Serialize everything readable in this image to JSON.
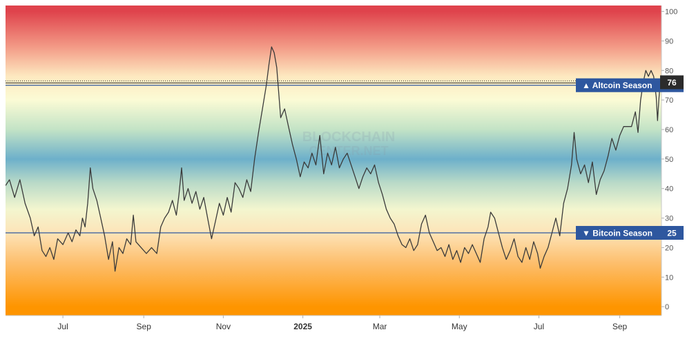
{
  "watermark": [
    "BLOCKCHAIN",
    "CENTER.NET"
  ],
  "chart_data": {
    "type": "line",
    "title": "",
    "xlabel": "",
    "ylabel": "",
    "ylim": [
      -3,
      102
    ],
    "y_ticks": [
      0,
      10,
      20,
      30,
      40,
      50,
      60,
      70,
      80,
      90,
      100
    ],
    "x_tick_labels": [
      {
        "label": "Jul",
        "date": "2024-07-01"
      },
      {
        "label": "Sep",
        "date": "2024-09-01"
      },
      {
        "label": "Nov",
        "date": "2024-11-01"
      },
      {
        "label": "2025",
        "date": "2025-01-01",
        "bold": true
      },
      {
        "label": "Mar",
        "date": "2025-03-01"
      },
      {
        "label": "May",
        "date": "2025-05-01"
      },
      {
        "label": "Jul",
        "date": "2025-07-01"
      },
      {
        "label": "Sep",
        "date": "2025-09-01"
      }
    ],
    "x_range": [
      "2024-05-18",
      "2025-10-03"
    ],
    "background_gradient": [
      {
        "value": 100,
        "color": "#df434c"
      },
      {
        "value": 88,
        "color": "#f39a86"
      },
      {
        "value": 78,
        "color": "#fde9c0"
      },
      {
        "value": 70,
        "color": "#fbfbd5"
      },
      {
        "value": 60,
        "color": "#c3e3c6"
      },
      {
        "value": 50,
        "color": "#6db0ca"
      },
      {
        "value": 42,
        "color": "#b9dac8"
      },
      {
        "value": 33,
        "color": "#f3f6cf"
      },
      {
        "value": 25,
        "color": "#fde4b8"
      },
      {
        "value": 15,
        "color": "#fdbf6e"
      },
      {
        "value": 0,
        "color": "#fe9500"
      }
    ],
    "reference_lines": [
      {
        "name": "Altcoin Season",
        "value": 75,
        "symbol": "▲",
        "color": "#2e579f"
      },
      {
        "name": "Bitcoin Season",
        "value": 25,
        "symbol": "▼",
        "color": "#2e579f"
      }
    ],
    "current_value": {
      "value": 76,
      "color": "#2b2b2b"
    },
    "series": [
      {
        "color": "#3a3a3a",
        "points": [
          [
            "2024-05-18",
            41
          ],
          [
            "2024-05-21",
            43
          ],
          [
            "2024-05-25",
            37
          ],
          [
            "2024-05-29",
            43
          ],
          [
            "2024-06-02",
            35
          ],
          [
            "2024-06-06",
            30
          ],
          [
            "2024-06-09",
            24
          ],
          [
            "2024-06-12",
            27
          ],
          [
            "2024-06-15",
            19
          ],
          [
            "2024-06-18",
            17
          ],
          [
            "2024-06-21",
            20
          ],
          [
            "2024-06-24",
            16
          ],
          [
            "2024-06-27",
            23
          ],
          [
            "2024-07-01",
            21
          ],
          [
            "2024-07-05",
            25
          ],
          [
            "2024-07-08",
            22
          ],
          [
            "2024-07-11",
            26
          ],
          [
            "2024-07-14",
            24
          ],
          [
            "2024-07-16",
            30
          ],
          [
            "2024-07-18",
            27
          ],
          [
            "2024-07-20",
            35
          ],
          [
            "2024-07-22",
            47
          ],
          [
            "2024-07-24",
            40
          ],
          [
            "2024-07-27",
            36
          ],
          [
            "2024-07-30",
            30
          ],
          [
            "2024-08-02",
            24
          ],
          [
            "2024-08-05",
            16
          ],
          [
            "2024-08-08",
            22
          ],
          [
            "2024-08-10",
            12
          ],
          [
            "2024-08-13",
            20
          ],
          [
            "2024-08-16",
            18
          ],
          [
            "2024-08-19",
            23
          ],
          [
            "2024-08-22",
            21
          ],
          [
            "2024-08-24",
            31
          ],
          [
            "2024-08-26",
            22
          ],
          [
            "2024-08-30",
            20
          ],
          [
            "2024-09-03",
            18
          ],
          [
            "2024-09-07",
            20
          ],
          [
            "2024-09-11",
            18
          ],
          [
            "2024-09-14",
            27
          ],
          [
            "2024-09-17",
            30
          ],
          [
            "2024-09-20",
            32
          ],
          [
            "2024-09-23",
            36
          ],
          [
            "2024-09-26",
            31
          ],
          [
            "2024-09-28",
            38
          ],
          [
            "2024-09-30",
            47
          ],
          [
            "2024-10-02",
            36
          ],
          [
            "2024-10-05",
            40
          ],
          [
            "2024-10-08",
            35
          ],
          [
            "2024-10-11",
            39
          ],
          [
            "2024-10-14",
            33
          ],
          [
            "2024-10-17",
            37
          ],
          [
            "2024-10-20",
            30
          ],
          [
            "2024-10-23",
            23
          ],
          [
            "2024-10-26",
            29
          ],
          [
            "2024-10-29",
            35
          ],
          [
            "2024-11-01",
            31
          ],
          [
            "2024-11-04",
            37
          ],
          [
            "2024-11-07",
            32
          ],
          [
            "2024-11-10",
            42
          ],
          [
            "2024-11-13",
            40
          ],
          [
            "2024-11-16",
            37
          ],
          [
            "2024-11-19",
            43
          ],
          [
            "2024-11-22",
            39
          ],
          [
            "2024-11-25",
            50
          ],
          [
            "2024-11-28",
            59
          ],
          [
            "2024-12-01",
            67
          ],
          [
            "2024-12-04",
            75
          ],
          [
            "2024-12-06",
            82
          ],
          [
            "2024-12-08",
            88
          ],
          [
            "2024-12-10",
            86
          ],
          [
            "2024-12-12",
            81
          ],
          [
            "2024-12-15",
            64
          ],
          [
            "2024-12-18",
            67
          ],
          [
            "2024-12-21",
            61
          ],
          [
            "2024-12-24",
            55
          ],
          [
            "2024-12-27",
            50
          ],
          [
            "2024-12-30",
            44
          ],
          [
            "2025-01-02",
            49
          ],
          [
            "2025-01-05",
            47
          ],
          [
            "2025-01-08",
            52
          ],
          [
            "2025-01-11",
            48
          ],
          [
            "2025-01-14",
            58
          ],
          [
            "2025-01-17",
            45
          ],
          [
            "2025-01-20",
            52
          ],
          [
            "2025-01-23",
            48
          ],
          [
            "2025-01-26",
            54
          ],
          [
            "2025-01-29",
            47
          ],
          [
            "2025-02-01",
            50
          ],
          [
            "2025-02-04",
            52
          ],
          [
            "2025-02-07",
            48
          ],
          [
            "2025-02-10",
            44
          ],
          [
            "2025-02-13",
            40
          ],
          [
            "2025-02-16",
            44
          ],
          [
            "2025-02-19",
            47
          ],
          [
            "2025-02-22",
            45
          ],
          [
            "2025-02-25",
            48
          ],
          [
            "2025-02-28",
            42
          ],
          [
            "2025-03-03",
            38
          ],
          [
            "2025-03-06",
            33
          ],
          [
            "2025-03-09",
            30
          ],
          [
            "2025-03-12",
            28
          ],
          [
            "2025-03-15",
            24
          ],
          [
            "2025-03-18",
            21
          ],
          [
            "2025-03-21",
            20
          ],
          [
            "2025-03-24",
            23
          ],
          [
            "2025-03-27",
            19
          ],
          [
            "2025-03-30",
            21
          ],
          [
            "2025-04-02",
            28
          ],
          [
            "2025-04-05",
            31
          ],
          [
            "2025-04-08",
            25
          ],
          [
            "2025-04-11",
            22
          ],
          [
            "2025-04-14",
            19
          ],
          [
            "2025-04-17",
            20
          ],
          [
            "2025-04-20",
            17
          ],
          [
            "2025-04-23",
            21
          ],
          [
            "2025-04-26",
            16
          ],
          [
            "2025-04-29",
            19
          ],
          [
            "2025-05-02",
            15
          ],
          [
            "2025-05-05",
            20
          ],
          [
            "2025-05-08",
            18
          ],
          [
            "2025-05-11",
            21
          ],
          [
            "2025-05-14",
            18
          ],
          [
            "2025-05-17",
            15
          ],
          [
            "2025-05-20",
            23
          ],
          [
            "2025-05-23",
            27
          ],
          [
            "2025-05-25",
            32
          ],
          [
            "2025-05-28",
            30
          ],
          [
            "2025-05-31",
            25
          ],
          [
            "2025-06-03",
            20
          ],
          [
            "2025-06-06",
            16
          ],
          [
            "2025-06-09",
            19
          ],
          [
            "2025-06-12",
            23
          ],
          [
            "2025-06-15",
            17
          ],
          [
            "2025-06-18",
            15
          ],
          [
            "2025-06-21",
            20
          ],
          [
            "2025-06-24",
            16
          ],
          [
            "2025-06-27",
            22
          ],
          [
            "2025-06-30",
            18
          ],
          [
            "2025-07-02",
            13
          ],
          [
            "2025-07-05",
            17
          ],
          [
            "2025-07-08",
            20
          ],
          [
            "2025-07-11",
            25
          ],
          [
            "2025-07-14",
            30
          ],
          [
            "2025-07-17",
            24
          ],
          [
            "2025-07-20",
            35
          ],
          [
            "2025-07-23",
            40
          ],
          [
            "2025-07-26",
            48
          ],
          [
            "2025-07-28",
            59
          ],
          [
            "2025-07-30",
            50
          ],
          [
            "2025-08-02",
            45
          ],
          [
            "2025-08-05",
            48
          ],
          [
            "2025-08-08",
            42
          ],
          [
            "2025-08-11",
            49
          ],
          [
            "2025-08-14",
            38
          ],
          [
            "2025-08-17",
            43
          ],
          [
            "2025-08-20",
            46
          ],
          [
            "2025-08-23",
            51
          ],
          [
            "2025-08-26",
            57
          ],
          [
            "2025-08-29",
            53
          ],
          [
            "2025-09-01",
            58
          ],
          [
            "2025-09-04",
            61
          ],
          [
            "2025-09-07",
            61
          ],
          [
            "2025-09-10",
            61
          ],
          [
            "2025-09-13",
            66
          ],
          [
            "2025-09-15",
            59
          ],
          [
            "2025-09-17",
            70
          ],
          [
            "2025-09-19",
            76
          ],
          [
            "2025-09-21",
            80
          ],
          [
            "2025-09-23",
            78
          ],
          [
            "2025-09-25",
            80
          ],
          [
            "2025-09-27",
            78
          ],
          [
            "2025-09-29",
            71
          ],
          [
            "2025-09-30",
            63
          ],
          [
            "2025-10-01",
            70
          ],
          [
            "2025-10-02",
            76
          ]
        ]
      }
    ]
  }
}
